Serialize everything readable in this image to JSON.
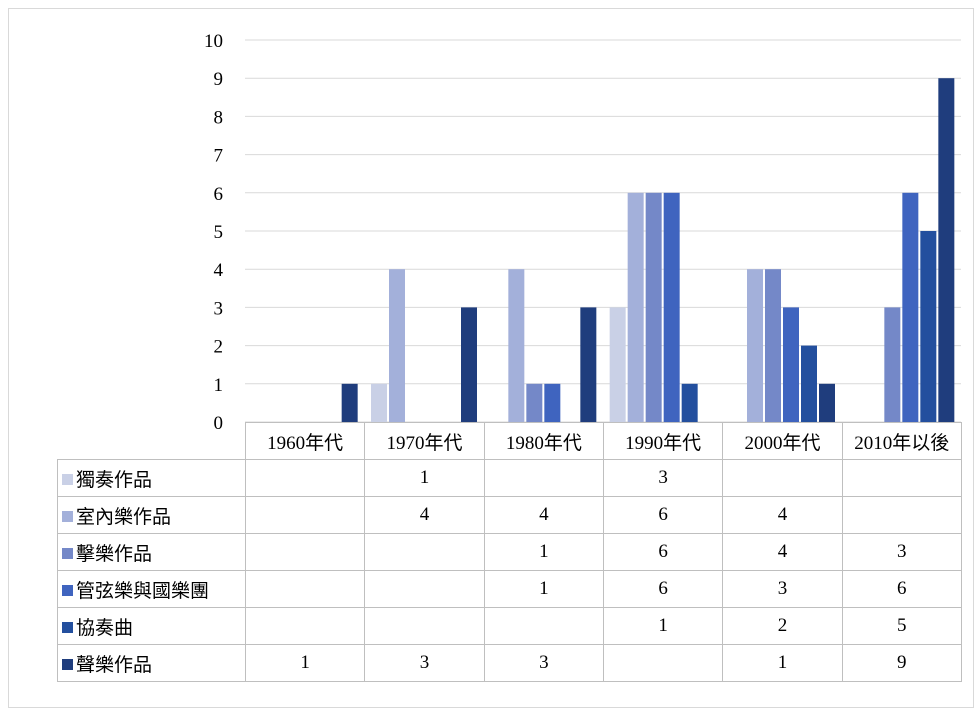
{
  "chart_data": {
    "type": "bar",
    "categories": [
      "1960年代",
      "1970年代",
      "1980年代",
      "1990年代",
      "2000年代",
      "2010年以後"
    ],
    "ylim": [
      0,
      10
    ],
    "yticks": [
      "0",
      "1",
      "2",
      "3",
      "4",
      "5",
      "6",
      "7",
      "8",
      "9",
      "10"
    ],
    "grid": true,
    "legend": "data-table",
    "series": [
      {
        "name": "獨奏作品",
        "color": "#c9d0e6",
        "values": [
          null,
          1,
          null,
          3,
          null,
          null
        ]
      },
      {
        "name": "室內樂作品",
        "color": "#a3b0da",
        "values": [
          null,
          4,
          4,
          6,
          4,
          null
        ]
      },
      {
        "name": "擊樂作品",
        "color": "#7488c8",
        "values": [
          null,
          null,
          1,
          6,
          4,
          3
        ]
      },
      {
        "name": "管弦樂與國樂團",
        "color": "#3f64bf",
        "values": [
          null,
          null,
          1,
          6,
          3,
          6
        ]
      },
      {
        "name": "協奏曲",
        "color": "#234f9e",
        "values": [
          null,
          null,
          null,
          1,
          2,
          5
        ]
      },
      {
        "name": "聲樂作品",
        "color": "#1f3d7d",
        "values": [
          1,
          3,
          3,
          null,
          1,
          9
        ]
      }
    ],
    "table_values": [
      [
        "",
        "1",
        "",
        "3",
        "",
        ""
      ],
      [
        "",
        "4",
        "4",
        "6",
        "4",
        ""
      ],
      [
        "",
        "",
        "1",
        "6",
        "4",
        "3"
      ],
      [
        "",
        "",
        "1",
        "6",
        "3",
        "6"
      ],
      [
        "",
        "",
        "",
        "1",
        "2",
        "5"
      ],
      [
        "1",
        "3",
        "3",
        "",
        "1",
        "9"
      ]
    ]
  }
}
